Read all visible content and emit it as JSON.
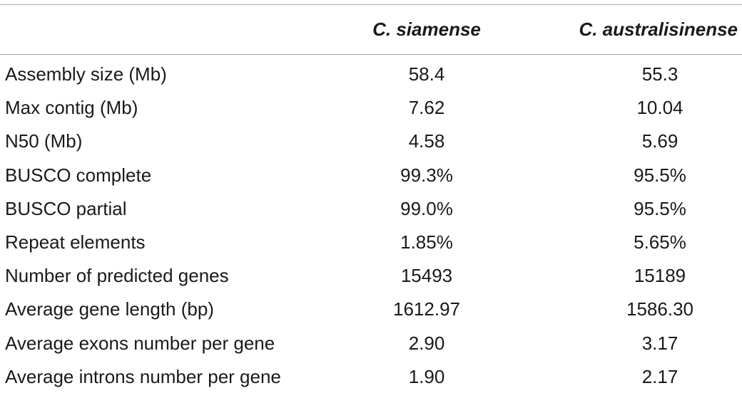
{
  "table": {
    "headers": [
      "",
      "C. siamense",
      "C. australisinense"
    ],
    "rows": [
      [
        "Assembly size (Mb)",
        "58.4",
        "55.3"
      ],
      [
        "Max contig (Mb)",
        "7.62",
        "10.04"
      ],
      [
        "N50 (Mb)",
        "4.58",
        "5.69"
      ],
      [
        "BUSCO complete",
        "99.3%",
        "95.5%"
      ],
      [
        "BUSCO partial",
        "99.0%",
        "95.5%"
      ],
      [
        "Repeat elements",
        "1.85%",
        "5.65%"
      ],
      [
        "Number of predicted genes",
        "15493",
        "15189"
      ],
      [
        "Average gene length (bp)",
        "1612.97",
        "1586.30"
      ],
      [
        "Average exons number per gene",
        "2.90",
        "3.17"
      ],
      [
        "Average introns number per gene",
        "1.90",
        "2.17"
      ]
    ]
  }
}
